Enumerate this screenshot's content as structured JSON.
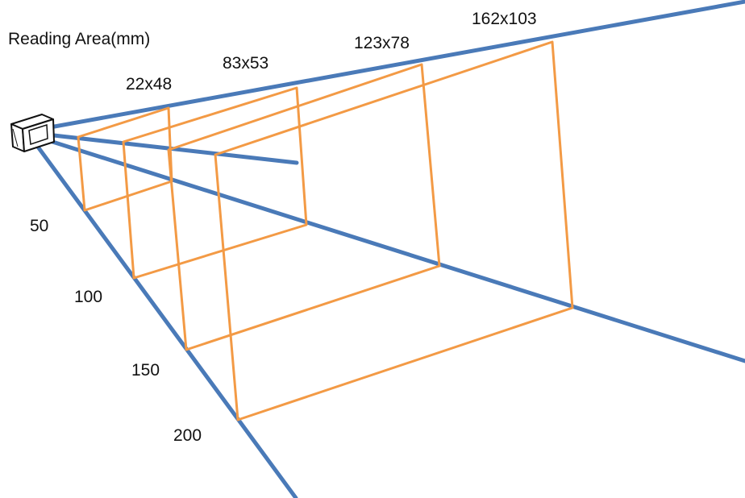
{
  "title": "Reading Area(mm)",
  "reading_areas": [
    "22x48",
    "83x53",
    "123x78",
    "162x103"
  ],
  "distances": [
    "50",
    "100",
    "150",
    "200"
  ],
  "colors": {
    "beam": "#4a7ab8",
    "frame": "#f39a45",
    "text": "#111111",
    "background": "#ffffff"
  },
  "icons": {
    "device": "scanner-device-icon"
  }
}
